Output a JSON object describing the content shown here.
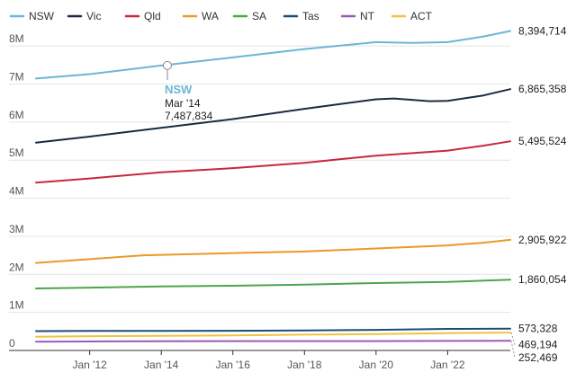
{
  "chart_data": {
    "type": "line",
    "title": "",
    "xlabel": "",
    "ylabel": "",
    "x_range": [
      2010.5,
      2023.75
    ],
    "ylim": [
      0,
      8500000
    ],
    "y_ticks": [
      0,
      1000000,
      2000000,
      3000000,
      4000000,
      5000000,
      6000000,
      7000000,
      8000000
    ],
    "y_tick_labels": [
      "0",
      "1M",
      "2M",
      "3M",
      "4M",
      "5M",
      "6M",
      "7M",
      "8M"
    ],
    "x_ticks": [
      2012,
      2014,
      2016,
      2018,
      2020,
      2022
    ],
    "x_tick_labels": [
      "Jan '12",
      "Jan '14",
      "Jan '16",
      "Jan '18",
      "Jan '20",
      "Jan '22"
    ],
    "grid": true,
    "legend_position": "top",
    "series": [
      {
        "name": "NSW",
        "color": "#6bb6d6",
        "end_label": "8,394,714",
        "points": [
          [
            2010.5,
            7144000
          ],
          [
            2012,
            7260000
          ],
          [
            2014,
            7487834
          ],
          [
            2016,
            7700000
          ],
          [
            2018,
            7920000
          ],
          [
            2020,
            8100000
          ],
          [
            2021,
            8080000
          ],
          [
            2022,
            8100000
          ],
          [
            2023,
            8250000
          ],
          [
            2023.75,
            8394714
          ]
        ]
      },
      {
        "name": "Vic",
        "color": "#1b2a41",
        "end_label": "6,865,358",
        "points": [
          [
            2010.5,
            5460000
          ],
          [
            2012,
            5620000
          ],
          [
            2014,
            5850000
          ],
          [
            2016,
            6080000
          ],
          [
            2018,
            6350000
          ],
          [
            2020,
            6600000
          ],
          [
            2020.5,
            6620000
          ],
          [
            2021.5,
            6550000
          ],
          [
            2022,
            6560000
          ],
          [
            2023,
            6700000
          ],
          [
            2023.75,
            6865358
          ]
        ]
      },
      {
        "name": "Qld",
        "color": "#c8283c",
        "end_label": "5,495,524",
        "points": [
          [
            2010.5,
            4410000
          ],
          [
            2012,
            4520000
          ],
          [
            2014,
            4680000
          ],
          [
            2016,
            4790000
          ],
          [
            2018,
            4930000
          ],
          [
            2020,
            5120000
          ],
          [
            2022,
            5250000
          ],
          [
            2023,
            5380000
          ],
          [
            2023.75,
            5495524
          ]
        ]
      },
      {
        "name": "WA",
        "color": "#ea9a26",
        "end_label": "2,905,922",
        "points": [
          [
            2010.5,
            2300000
          ],
          [
            2012,
            2400000
          ],
          [
            2013.5,
            2500000
          ],
          [
            2016,
            2560000
          ],
          [
            2018,
            2600000
          ],
          [
            2020,
            2680000
          ],
          [
            2022,
            2760000
          ],
          [
            2023,
            2830000
          ],
          [
            2023.75,
            2905922
          ]
        ]
      },
      {
        "name": "SA",
        "color": "#4ca54a",
        "end_label": "1,860,054",
        "points": [
          [
            2010.5,
            1630000
          ],
          [
            2012,
            1650000
          ],
          [
            2014,
            1680000
          ],
          [
            2016,
            1700000
          ],
          [
            2018,
            1730000
          ],
          [
            2020,
            1770000
          ],
          [
            2022,
            1800000
          ],
          [
            2023.75,
            1860054
          ]
        ]
      },
      {
        "name": "Tas",
        "color": "#1a4d7a",
        "end_label": "573,328",
        "points": [
          [
            2010.5,
            508000
          ],
          [
            2012,
            512000
          ],
          [
            2014,
            514000
          ],
          [
            2016,
            517000
          ],
          [
            2018,
            526000
          ],
          [
            2020,
            540000
          ],
          [
            2022,
            567000
          ],
          [
            2023.75,
            573328
          ]
        ]
      },
      {
        "name": "NT",
        "color": "#9c59b6",
        "end_label": "252,469",
        "points": [
          [
            2010.5,
            230000
          ],
          [
            2012,
            235000
          ],
          [
            2014,
            243000
          ],
          [
            2016,
            245000
          ],
          [
            2018,
            245000
          ],
          [
            2020,
            246000
          ],
          [
            2022,
            250000
          ],
          [
            2023.75,
            252469
          ]
        ]
      },
      {
        "name": "ACT",
        "color": "#f0c43c",
        "end_label": "469,194",
        "points": [
          [
            2010.5,
            362000
          ],
          [
            2012,
            375000
          ],
          [
            2014,
            385000
          ],
          [
            2016,
            396000
          ],
          [
            2018,
            415000
          ],
          [
            2020,
            430000
          ],
          [
            2022,
            455000
          ],
          [
            2023.75,
            469194
          ]
        ]
      }
    ],
    "tooltip": {
      "series": "NSW",
      "date_label": "Mar '14",
      "value_label": "7,487,834",
      "x": 2014.17,
      "y": 7487834
    }
  }
}
